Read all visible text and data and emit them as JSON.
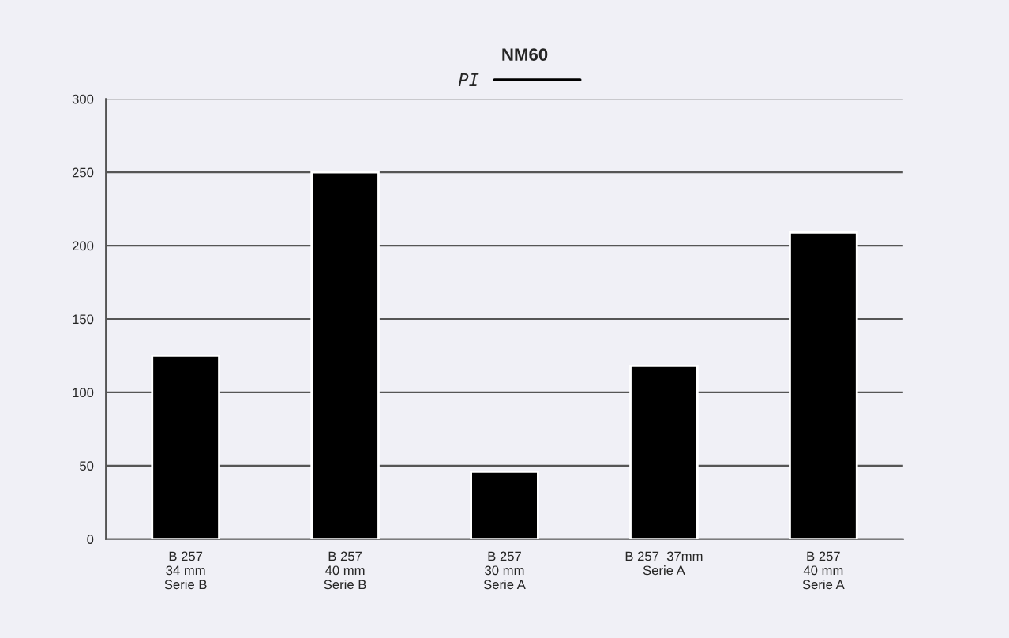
{
  "chart_data": {
    "type": "bar",
    "title": "NM60",
    "subtitle": "PI",
    "categories": [
      "B 257\n34 mm\nSerie B",
      "B 257\n40 mm\nSerie B",
      "B 257\n30 mm\nSerie A",
      "B 257  37mm\nSerie A",
      "B 257\n40 mm\nSerie A"
    ],
    "values": [
      125,
      250,
      46,
      118,
      209
    ],
    "color": "#000000",
    "ylim": [
      0,
      300
    ],
    "yticks": [
      0,
      50,
      100,
      150,
      200,
      250,
      300
    ],
    "grid": "y"
  }
}
